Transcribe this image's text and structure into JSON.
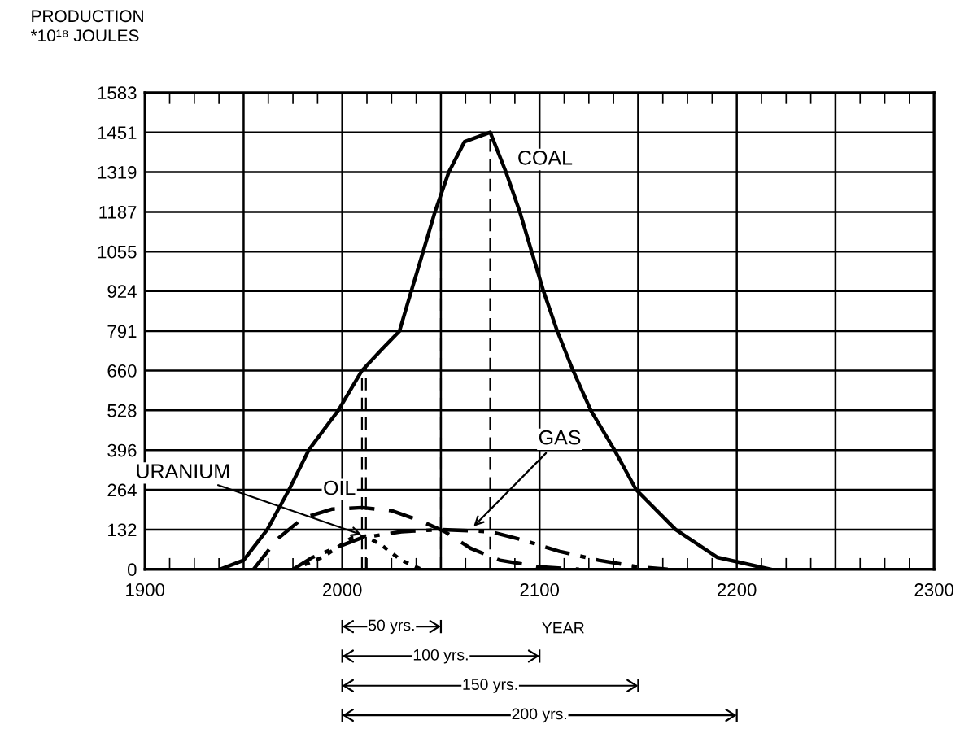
{
  "chart_data": {
    "type": "line",
    "ylabel": "PRODUCTION\n*10¹⁸ JOULES",
    "xlabel": "YEAR",
    "series": [
      {
        "name": "COAL",
        "color": "#000000",
        "line_style": "solid",
        "x": [
          1938,
          1950,
          1962,
          1973,
          1983,
          1998,
          2010,
          2020,
          2029,
          2035,
          2041,
          2047,
          2054,
          2062,
          2075,
          2083,
          2090,
          2096,
          2102,
          2109,
          2117,
          2126,
          2138,
          2149,
          2169,
          2190,
          2217
        ],
        "values": [
          0,
          30,
          132,
          264,
          396,
          528,
          660,
          730,
          791,
          924,
          1055,
          1187,
          1319,
          1420,
          1451,
          1319,
          1187,
          1055,
          924,
          791,
          660,
          528,
          396,
          264,
          132,
          40,
          0
        ]
      },
      {
        "name": "OIL",
        "color": "#000000",
        "line_style": "dashed",
        "x": [
          1955,
          1967,
          1980,
          1995,
          2010,
          2025,
          2040,
          2052,
          2065,
          2080,
          2100,
          2120
        ],
        "values": [
          0,
          100,
          170,
          200,
          205,
          195,
          160,
          125,
          70,
          30,
          8,
          0
        ]
      },
      {
        "name": "GAS",
        "color": "#000000",
        "line_style": "dashdot",
        "x": [
          1975,
          1985,
          2000,
          2010,
          2030,
          2050,
          2075,
          2090,
          2110,
          2130,
          2150,
          2165
        ],
        "values": [
          0,
          40,
          80,
          105,
          125,
          132,
          125,
          100,
          60,
          30,
          8,
          0
        ]
      },
      {
        "name": "URANIUM",
        "color": "#000000",
        "line_style": "dotted",
        "x": [
          1975,
          1990,
          2005,
          2012,
          2020,
          2030,
          2040
        ],
        "values": [
          0,
          40,
          105,
          110,
          80,
          30,
          0
        ]
      }
    ],
    "xlim": [
      1900,
      2300
    ],
    "xticks": [
      1900,
      {
        "value": 1950,
        "label": null
      },
      2000,
      {
        "value": 2050,
        "label": null
      },
      2100,
      {
        "value": 2150,
        "label": null
      },
      2200,
      {
        "value": 2250,
        "label": null
      },
      2300
    ],
    "ylim": [
      0,
      1583
    ],
    "yticks": [
      0,
      132,
      264,
      396,
      528,
      660,
      791,
      924,
      1055,
      1187,
      1319,
      1451,
      1583
    ],
    "grid": true,
    "legend": false,
    "marker": "none",
    "ref_lines": [
      {
        "axis": "x",
        "value": 2075,
        "label": null,
        "line_style": "dashed"
      },
      {
        "axis": "x",
        "value": 2050,
        "label": null,
        "line_style": "dashed"
      },
      {
        "axis": "x",
        "value": 2010,
        "label": null,
        "line_style": "dashed"
      },
      {
        "axis": "x",
        "value": 2012,
        "label": null,
        "line_style": "dashed"
      }
    ],
    "annotations": [
      "50 yrs.",
      "100 yrs.",
      "150 yrs.",
      "200 yrs."
    ]
  }
}
